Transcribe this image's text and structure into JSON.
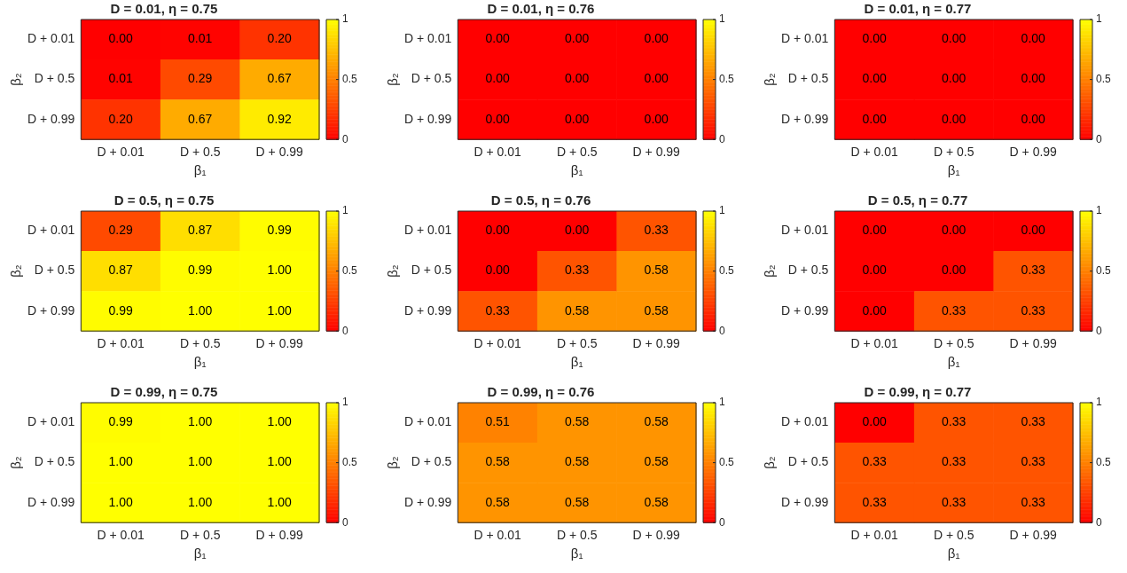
{
  "chart_data": [
    {
      "type": "heatmap",
      "title": "D = 0.01, η = 0.75",
      "xlabel": "β₁",
      "ylabel": "β₂",
      "categories": [
        "D + 0.01",
        "D + 0.5",
        "D + 0.99"
      ],
      "y_categories": [
        "D + 0.01",
        "D + 0.5",
        "D + 0.99"
      ],
      "cells": [
        [
          0,
          0.01,
          0.2
        ],
        [
          0.01,
          0.29,
          0.67
        ],
        [
          0.2,
          0.67,
          0.92
        ]
      ],
      "cell_labels": [
        [
          "0.00",
          "0.01",
          "0.20"
        ],
        [
          "0.01",
          "0.29",
          "0.67"
        ],
        [
          "0.20",
          "0.67",
          "0.92"
        ]
      ],
      "clim": [
        0,
        1
      ],
      "cticks": [
        0,
        0.5,
        1
      ]
    },
    {
      "type": "heatmap",
      "title": "D = 0.01, η = 0.76",
      "xlabel": "β₁",
      "ylabel": "β₂",
      "categories": [
        "D + 0.01",
        "D + 0.5",
        "D + 0.99"
      ],
      "y_categories": [
        "D + 0.01",
        "D + 0.5",
        "D + 0.99"
      ],
      "cells": [
        [
          0,
          0,
          0
        ],
        [
          0,
          0,
          0
        ],
        [
          0,
          0,
          0
        ]
      ],
      "cell_labels": [
        [
          "0.00",
          "0.00",
          "0.00"
        ],
        [
          "0.00",
          "0.00",
          "0.00"
        ],
        [
          "0.00",
          "0.00",
          "0.00"
        ]
      ],
      "clim": [
        0,
        1
      ],
      "cticks": [
        0,
        0.5,
        1
      ]
    },
    {
      "type": "heatmap",
      "title": "D = 0.01, η = 0.77",
      "xlabel": "β₁",
      "ylabel": "β₂",
      "categories": [
        "D + 0.01",
        "D + 0.5",
        "D + 0.99"
      ],
      "y_categories": [
        "D + 0.01",
        "D + 0.5",
        "D + 0.99"
      ],
      "cells": [
        [
          0,
          0,
          0
        ],
        [
          0,
          0,
          0
        ],
        [
          0,
          0,
          0
        ]
      ],
      "cell_labels": [
        [
          "0.00",
          "0.00",
          "0.00"
        ],
        [
          "0.00",
          "0.00",
          "0.00"
        ],
        [
          "0.00",
          "0.00",
          "0.00"
        ]
      ],
      "clim": [
        0,
        1
      ],
      "cticks": [
        0,
        0.5,
        1
      ]
    },
    {
      "type": "heatmap",
      "title": "D = 0.5, η = 0.75",
      "xlabel": "β₁",
      "ylabel": "β₂",
      "categories": [
        "D + 0.01",
        "D + 0.5",
        "D + 0.99"
      ],
      "y_categories": [
        "D + 0.01",
        "D + 0.5",
        "D + 0.99"
      ],
      "cells": [
        [
          0.29,
          0.87,
          0.99
        ],
        [
          0.87,
          0.99,
          1
        ],
        [
          0.99,
          1,
          1
        ]
      ],
      "cell_labels": [
        [
          "0.29",
          "0.87",
          "0.99"
        ],
        [
          "0.87",
          "0.99",
          "1.00"
        ],
        [
          "0.99",
          "1.00",
          "1.00"
        ]
      ],
      "clim": [
        0,
        1
      ],
      "cticks": [
        0,
        0.5,
        1
      ]
    },
    {
      "type": "heatmap",
      "title": "D = 0.5, η = 0.76",
      "xlabel": "β₁",
      "ylabel": "β₂",
      "categories": [
        "D + 0.01",
        "D + 0.5",
        "D + 0.99"
      ],
      "y_categories": [
        "D + 0.01",
        "D + 0.5",
        "D + 0.99"
      ],
      "cells": [
        [
          0,
          0,
          0.33
        ],
        [
          0,
          0.33,
          0.58
        ],
        [
          0.33,
          0.58,
          0.58
        ]
      ],
      "cell_labels": [
        [
          "0.00",
          "0.00",
          "0.33"
        ],
        [
          "0.00",
          "0.33",
          "0.58"
        ],
        [
          "0.33",
          "0.58",
          "0.58"
        ]
      ],
      "clim": [
        0,
        1
      ],
      "cticks": [
        0,
        0.5,
        1
      ]
    },
    {
      "type": "heatmap",
      "title": "D = 0.5, η = 0.77",
      "xlabel": "β₁",
      "ylabel": "β₂",
      "categories": [
        "D + 0.01",
        "D + 0.5",
        "D + 0.99"
      ],
      "y_categories": [
        "D + 0.01",
        "D + 0.5",
        "D + 0.99"
      ],
      "cells": [
        [
          0,
          0,
          0
        ],
        [
          0,
          0,
          0.33
        ],
        [
          0,
          0.33,
          0.33
        ]
      ],
      "cell_labels": [
        [
          "0.00",
          "0.00",
          "0.00"
        ],
        [
          "0.00",
          "0.00",
          "0.33"
        ],
        [
          "0.00",
          "0.33",
          "0.33"
        ]
      ],
      "clim": [
        0,
        1
      ],
      "cticks": [
        0,
        0.5,
        1
      ]
    },
    {
      "type": "heatmap",
      "title": "D = 0.99, η = 0.75",
      "xlabel": "β₁",
      "ylabel": "β₂",
      "categories": [
        "D + 0.01",
        "D + 0.5",
        "D + 0.99"
      ],
      "y_categories": [
        "D + 0.01",
        "D + 0.5",
        "D + 0.99"
      ],
      "cells": [
        [
          0.99,
          1,
          1
        ],
        [
          1,
          1,
          1
        ],
        [
          1,
          1,
          1
        ]
      ],
      "cell_labels": [
        [
          "0.99",
          "1.00",
          "1.00"
        ],
        [
          "1.00",
          "1.00",
          "1.00"
        ],
        [
          "1.00",
          "1.00",
          "1.00"
        ]
      ],
      "clim": [
        0,
        1
      ],
      "cticks": [
        0,
        0.5,
        1
      ]
    },
    {
      "type": "heatmap",
      "title": "D = 0.99, η = 0.76",
      "xlabel": "β₁",
      "ylabel": "β₂",
      "categories": [
        "D + 0.01",
        "D + 0.5",
        "D + 0.99"
      ],
      "y_categories": [
        "D + 0.01",
        "D + 0.5",
        "D + 0.99"
      ],
      "cells": [
        [
          0.51,
          0.58,
          0.58
        ],
        [
          0.58,
          0.58,
          0.58
        ],
        [
          0.58,
          0.58,
          0.58
        ]
      ],
      "cell_labels": [
        [
          "0.51",
          "0.58",
          "0.58"
        ],
        [
          "0.58",
          "0.58",
          "0.58"
        ],
        [
          "0.58",
          "0.58",
          "0.58"
        ]
      ],
      "clim": [
        0,
        1
      ],
      "cticks": [
        0,
        0.5,
        1
      ]
    },
    {
      "type": "heatmap",
      "title": "D = 0.99, η = 0.77",
      "xlabel": "β₁",
      "ylabel": "β₂",
      "categories": [
        "D + 0.01",
        "D + 0.5",
        "D + 0.99"
      ],
      "y_categories": [
        "D + 0.01",
        "D + 0.5",
        "D + 0.99"
      ],
      "cells": [
        [
          0,
          0.33,
          0.33
        ],
        [
          0.33,
          0.33,
          0.33
        ],
        [
          0.33,
          0.33,
          0.33
        ]
      ],
      "cell_labels": [
        [
          "0.00",
          "0.33",
          "0.33"
        ],
        [
          "0.33",
          "0.33",
          "0.33"
        ],
        [
          "0.33",
          "0.33",
          "0.33"
        ]
      ],
      "clim": [
        0,
        1
      ],
      "cticks": [
        0,
        0.5,
        1
      ]
    }
  ]
}
